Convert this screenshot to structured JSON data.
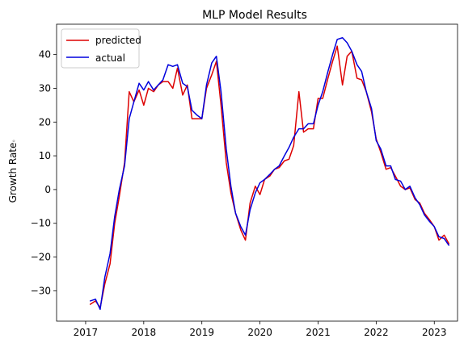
{
  "chart_data": {
    "type": "line",
    "title": "MLP Model Results",
    "xlabel": "",
    "ylabel": "Growth Rate",
    "ylabel_marker": "°",
    "xlim": [
      2016.5,
      2023.4
    ],
    "ylim": [
      -39,
      49
    ],
    "x_ticks": [
      2017,
      2018,
      2019,
      2020,
      2021,
      2022,
      2023
    ],
    "x_tick_labels": [
      "2017",
      "2018",
      "2019",
      "2020",
      "2021",
      "2022",
      "2023"
    ],
    "y_ticks": [
      -30,
      -20,
      -10,
      0,
      10,
      20,
      30,
      40
    ],
    "y_tick_labels": [
      "−30",
      "−20",
      "−10",
      "0",
      "10",
      "20",
      "30",
      "40"
    ],
    "legend_position": "top-left",
    "grid": false,
    "series": [
      {
        "name": "predicted",
        "color": "#dd0000",
        "x": [
          2017.08,
          2017.17,
          2017.25,
          2017.33,
          2017.42,
          2017.5,
          2017.58,
          2017.67,
          2017.75,
          2017.83,
          2017.92,
          2018.0,
          2018.08,
          2018.17,
          2018.25,
          2018.33,
          2018.42,
          2018.5,
          2018.58,
          2018.67,
          2018.75,
          2018.83,
          2018.92,
          2019.0,
          2019.08,
          2019.17,
          2019.25,
          2019.33,
          2019.42,
          2019.5,
          2019.58,
          2019.67,
          2019.75,
          2019.83,
          2019.92,
          2020.0,
          2020.08,
          2020.17,
          2020.25,
          2020.33,
          2020.42,
          2020.5,
          2020.58,
          2020.67,
          2020.75,
          2020.83,
          2020.92,
          2021.0,
          2021.08,
          2021.17,
          2021.25,
          2021.33,
          2021.42,
          2021.5,
          2021.58,
          2021.67,
          2021.75,
          2021.83,
          2021.92,
          2022.0,
          2022.08,
          2022.17,
          2022.25,
          2022.33,
          2022.42,
          2022.5,
          2022.58,
          2022.67,
          2022.75,
          2022.83,
          2022.92,
          2023.0,
          2023.08,
          2023.17,
          2023.25
        ],
        "values": [
          -34,
          -33,
          -35,
          -28,
          -22,
          -10,
          -2,
          8,
          29,
          26,
          29.5,
          25,
          30,
          29,
          31,
          32,
          32,
          30,
          36,
          28,
          31,
          21,
          21,
          21,
          30,
          34,
          38,
          25,
          8,
          -1,
          -7,
          -12,
          -15,
          -4,
          1,
          -1.5,
          3,
          4,
          6,
          6.5,
          8.5,
          9,
          13,
          29,
          17,
          18,
          18,
          27,
          27,
          33,
          38,
          42.5,
          31,
          39.5,
          41,
          33,
          32.5,
          29,
          23,
          15,
          11,
          6,
          6.5,
          4,
          1,
          0,
          0.5,
          -3,
          -4,
          -7,
          -9,
          -11,
          -15,
          -13.5,
          -16
        ]
      },
      {
        "name": "actual",
        "color": "#0000dd",
        "x": [
          2017.08,
          2017.17,
          2017.25,
          2017.33,
          2017.42,
          2017.5,
          2017.58,
          2017.67,
          2017.75,
          2017.83,
          2017.92,
          2018.0,
          2018.08,
          2018.17,
          2018.25,
          2018.33,
          2018.42,
          2018.5,
          2018.58,
          2018.67,
          2018.75,
          2018.83,
          2018.92,
          2019.0,
          2019.08,
          2019.17,
          2019.25,
          2019.33,
          2019.42,
          2019.5,
          2019.58,
          2019.67,
          2019.75,
          2019.83,
          2019.92,
          2020.0,
          2020.08,
          2020.17,
          2020.25,
          2020.33,
          2020.42,
          2020.5,
          2020.58,
          2020.67,
          2020.75,
          2020.83,
          2020.92,
          2021.0,
          2021.08,
          2021.17,
          2021.25,
          2021.33,
          2021.42,
          2021.5,
          2021.58,
          2021.67,
          2021.75,
          2021.83,
          2021.92,
          2022.0,
          2022.08,
          2022.17,
          2022.25,
          2022.33,
          2022.42,
          2022.5,
          2022.58,
          2022.67,
          2022.75,
          2022.83,
          2022.92,
          2023.0,
          2023.08,
          2023.17,
          2023.25
        ],
        "values": [
          -33,
          -32.5,
          -35.5,
          -26,
          -19,
          -8,
          0,
          7,
          21,
          26,
          31.5,
          29.5,
          32,
          29.5,
          31,
          32.5,
          37,
          36.5,
          37,
          31.5,
          30.5,
          23.5,
          22,
          21,
          31,
          37.5,
          39.5,
          29,
          12,
          1,
          -7,
          -11,
          -13.5,
          -6,
          -1,
          2,
          3,
          4.5,
          6,
          7,
          10,
          12.5,
          15.5,
          18,
          18,
          19.5,
          19.5,
          25,
          29,
          35,
          40,
          44.5,
          45,
          43.5,
          41,
          37,
          35,
          29,
          24,
          14.5,
          12,
          7,
          7,
          3,
          2.5,
          0,
          1,
          -2.5,
          -4.5,
          -7.5,
          -9.5,
          -11,
          -14,
          -14.5,
          -16.5
        ]
      }
    ]
  }
}
